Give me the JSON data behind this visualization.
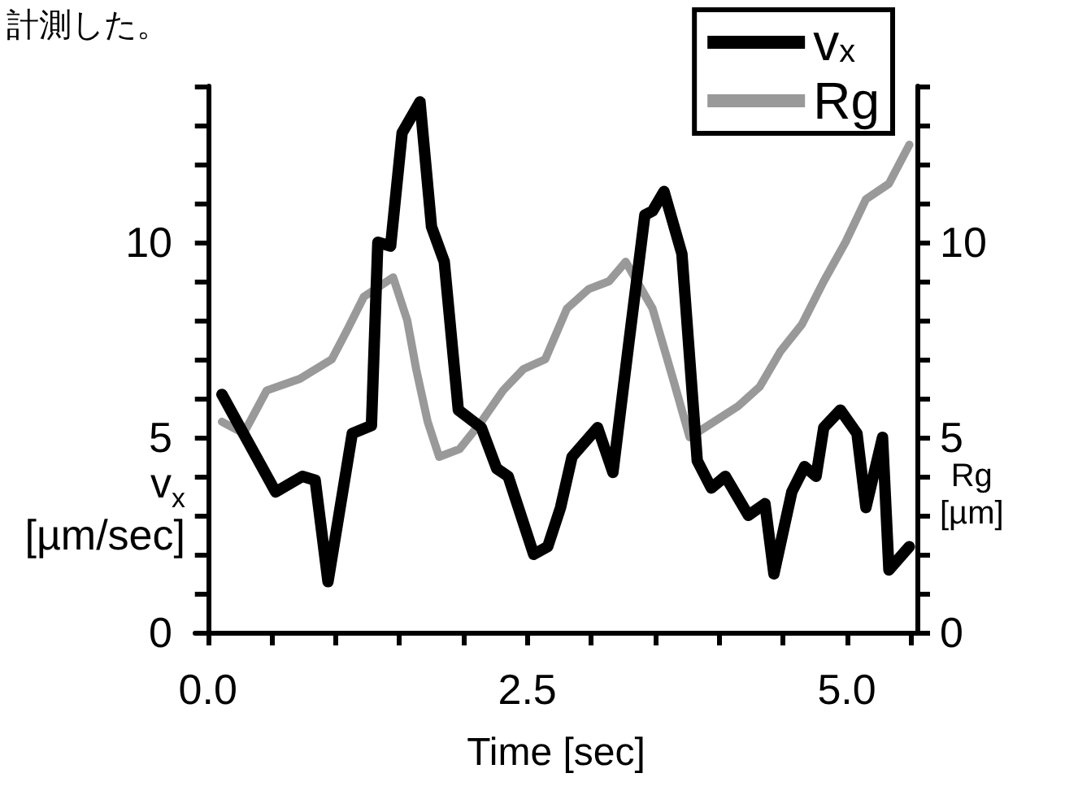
{
  "chart_data": {
    "type": "line",
    "xlabel": "Time [sec]",
    "ylabel": "v$_{x}$ [µm/sec]",
    "y2label": "Rg [µm]",
    "annotations": [
      "計測した。"
    ],
    "xlim": [
      -0.1,
      5.55
    ],
    "xticks": [
      {
        "value": 0,
        "label": "0.0"
      },
      {
        "value": 0.5,
        "label": null
      },
      {
        "value": 1,
        "label": null
      },
      {
        "value": 1.5,
        "label": null
      },
      {
        "value": 2,
        "label": null
      },
      {
        "value": 2.5,
        "label": "2.5"
      },
      {
        "value": 3,
        "label": null
      },
      {
        "value": 3.5,
        "label": null
      },
      {
        "value": 4,
        "label": null
      },
      {
        "value": 4.5,
        "label": null
      },
      {
        "value": 5,
        "label": "5.0"
      },
      {
        "value": 5.5,
        "label": null
      }
    ],
    "ylim": [
      0,
      14
    ],
    "yticks": [
      0,
      {
        "value": 1,
        "label": null
      },
      {
        "value": 2,
        "label": null
      },
      {
        "value": 3,
        "label": null
      },
      {
        "value": 4,
        "label": null
      },
      5,
      {
        "value": 6,
        "label": null
      },
      {
        "value": 7,
        "label": null
      },
      {
        "value": 8,
        "label": null
      },
      {
        "value": 9,
        "label": null
      },
      10,
      {
        "value": 11,
        "label": null
      },
      {
        "value": 12,
        "label": null
      },
      {
        "value": 13,
        "label": null
      },
      {
        "value": 14,
        "label": null
      }
    ],
    "y2lim": [
      0,
      14
    ],
    "y2ticks": [
      0,
      {
        "value": 1,
        "label": null
      },
      {
        "value": 2,
        "label": null
      },
      {
        "value": 3,
        "label": null
      },
      {
        "value": 4,
        "label": null
      },
      5,
      {
        "value": 6,
        "label": null
      },
      {
        "value": 7,
        "label": null
      },
      {
        "value": 8,
        "label": null
      },
      {
        "value": 9,
        "label": null
      },
      10,
      {
        "value": 11,
        "label": null
      },
      {
        "value": 12,
        "label": null
      },
      {
        "value": 13,
        "label": null
      },
      {
        "value": 14,
        "label": null
      }
    ],
    "grid": false,
    "legend": "top right",
    "marker": "none",
    "series": [
      {
        "name": "v$_{x}$",
        "color": "#000000",
        "x": [
          0.11,
          0.53,
          0.74,
          0.84,
          0.94,
          1.13,
          1.28,
          1.33,
          1.43,
          1.52,
          1.66,
          1.75,
          1.85,
          1.96,
          2.14,
          2.26,
          2.35,
          2.55,
          2.66,
          2.76,
          2.85,
          3.05,
          3.17,
          3.29,
          3.42,
          3.48,
          3.57,
          3.71,
          3.83,
          3.94,
          4.05,
          4.23,
          4.36,
          4.43,
          4.57,
          4.67,
          4.76,
          4.82,
          4.95,
          5.08,
          5.15,
          5.28,
          5.33,
          5.49
        ],
        "values": [
          6.1,
          3.6,
          4.0,
          3.9,
          1.3,
          5.1,
          5.3,
          10.0,
          9.9,
          12.8,
          13.6,
          10.4,
          9.5,
          5.7,
          5.25,
          4.2,
          4.0,
          2.0,
          2.2,
          3.2,
          4.5,
          5.25,
          4.1,
          7.3,
          10.7,
          10.8,
          11.3,
          9.7,
          4.4,
          3.7,
          4.0,
          3.0,
          3.3,
          1.5,
          3.6,
          4.25,
          4.0,
          5.25,
          5.7,
          5.1,
          3.2,
          5.0,
          1.6,
          2.2
        ]
      },
      {
        "name": "Rg",
        "color": "#999999",
        "axis": "y2",
        "x": [
          0.11,
          0.28,
          0.46,
          0.72,
          0.97,
          1.09,
          1.22,
          1.45,
          1.56,
          1.63,
          1.72,
          1.81,
          1.97,
          2.14,
          2.31,
          2.47,
          2.64,
          2.81,
          2.98,
          3.14,
          3.27,
          3.48,
          3.64,
          3.77,
          3.89,
          4.15,
          4.32,
          4.48,
          4.65,
          4.82,
          4.99,
          5.15,
          5.33,
          5.49
        ],
        "values": [
          5.4,
          5.1,
          6.2,
          6.5,
          7.0,
          7.75,
          8.6,
          9.1,
          8.0,
          6.75,
          5.4,
          4.5,
          4.7,
          5.4,
          6.2,
          6.75,
          7.0,
          8.3,
          8.8,
          9.0,
          9.5,
          8.3,
          6.5,
          5.0,
          5.25,
          5.8,
          6.3,
          7.2,
          7.9,
          9.0,
          10.0,
          11.1,
          11.5,
          12.5
        ]
      }
    ]
  }
}
